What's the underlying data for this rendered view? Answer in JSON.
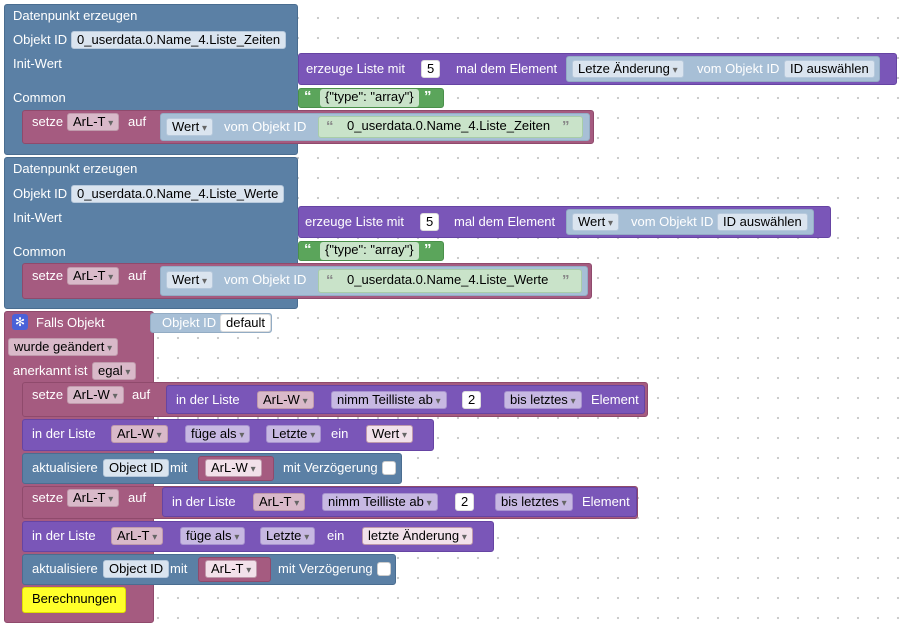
{
  "b1": {
    "title": "Datenpunkt erzeugen",
    "objekt_id_label": "Objekt ID",
    "objekt_id_value": "0_userdata.0.Name_4.Liste_Zeiten",
    "init_label": "Init-Wert",
    "common_label": "Common",
    "list_label": "erzeuge Liste mit",
    "list_count": "5",
    "list_mal": "mal dem Element",
    "element_select": "Letze Änderung",
    "vom_objekt": "vom Objekt ID",
    "id_select": "ID auswählen",
    "common_value": "{\"type\": \"array\"}",
    "setze": "setze",
    "var": "ArL-T",
    "auf": "auf",
    "wert_select": "Wert",
    "wert_vom": "vom Objekt ID",
    "wert_id": "0_userdata.0.Name_4.Liste_Zeiten"
  },
  "b2": {
    "title": "Datenpunkt erzeugen",
    "objekt_id_label": "Objekt ID",
    "objekt_id_value": "0_userdata.0.Name_4.Liste_Werte",
    "init_label": "Init-Wert",
    "common_label": "Common",
    "list_label": "erzeuge Liste mit",
    "list_count": "5",
    "list_mal": "mal dem Element",
    "element_select": "Wert",
    "vom_objekt": "vom Objekt ID",
    "id_select": "ID auswählen",
    "common_value": "{\"type\": \"array\"}",
    "setze": "setze",
    "var": "ArL-T",
    "auf": "auf",
    "wert_select": "Wert",
    "wert_vom": "vom Objekt ID",
    "wert_id": "0_userdata.0.Name_4.Liste_Werte"
  },
  "b3": {
    "title": "Falls Objekt",
    "objekt_id_label": "Objekt ID",
    "objekt_id_value": "default",
    "changed_select": "wurde geändert",
    "anerkannt": "anerkannt ist",
    "anerkannt_select": "egal",
    "r1_setze": "setze",
    "r1_var": "ArL-W",
    "r1_auf": "auf",
    "r1_inliste": "in der Liste",
    "r1_list": "ArL-W",
    "r1_op": "nimm Teilliste ab",
    "r1_num": "2",
    "r1_bis": "bis letztes",
    "r1_elem": "Element",
    "r2_inliste": "in der Liste",
    "r2_list": "ArL-W",
    "r2_op": "füge als",
    "r2_pos": "Letzte",
    "r2_ein": "ein",
    "r2_val": "Wert",
    "r3_akt": "aktualisiere",
    "r3_obj": "Object ID",
    "r3_mit": "mit",
    "r3_var": "ArL-W",
    "r3_verz": "mit Verzögerung",
    "r4_setze": "setze",
    "r4_var": "ArL-T",
    "r4_auf": "auf",
    "r4_inliste": "in der Liste",
    "r4_list": "ArL-T",
    "r4_op": "nimm Teilliste ab",
    "r4_num": "2",
    "r4_bis": "bis letztes",
    "r4_elem": "Element",
    "r5_inliste": "in der Liste",
    "r5_list": "ArL-T",
    "r5_op": "füge als",
    "r5_pos": "Letzte",
    "r5_ein": "ein",
    "r5_val": "letzte Änderung",
    "r6_akt": "aktualisiere",
    "r6_obj": "Object ID",
    "r6_mit": "mit",
    "r6_var": "ArL-T",
    "r6_verz": "mit Verzögerung",
    "r7": "Berechnungen"
  },
  "colors": {
    "blue": "#5b80a5",
    "purple": "#7a56b8",
    "red": "#a55b80",
    "green": "#5ba55b",
    "yellow": "#ffff2a",
    "trigger_icon": "#4a62d8"
  },
  "icons": {
    "trigger": "gear-icon"
  }
}
